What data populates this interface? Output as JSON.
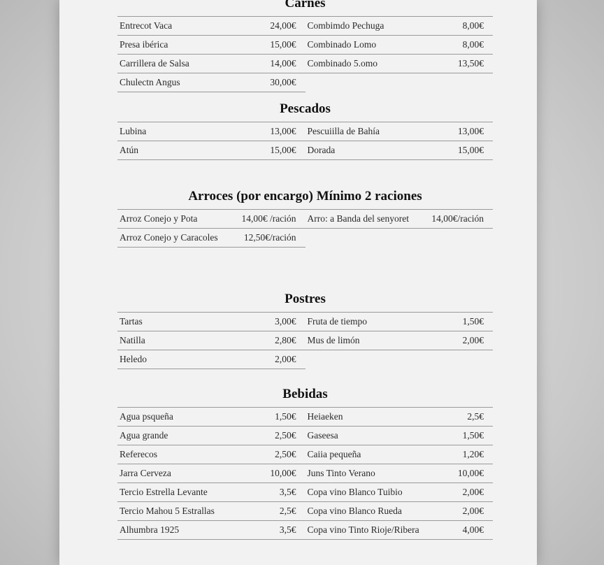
{
  "sections": [
    {
      "id": "carnes",
      "title": "Carnes",
      "rows": [
        [
          {
            "name": "Entrecot Vaca",
            "price": "24,00€"
          },
          {
            "name": "Combimdo Pechuga",
            "price": "8,00€"
          }
        ],
        [
          {
            "name": "Presa ibérica",
            "price": "15,00€"
          },
          {
            "name": "Combinado Lomo",
            "price": "8,00€"
          }
        ],
        [
          {
            "name": "Carrillera de Salsa",
            "price": "14,00€"
          },
          {
            "name": "Combinado 5.omo",
            "price": "13,50€"
          }
        ],
        [
          {
            "name": "Chulectn Angus",
            "price": "30,00€"
          },
          null
        ]
      ]
    },
    {
      "id": "pescados",
      "title": "Pescados",
      "rows": [
        [
          {
            "name": "Lubina",
            "price": "13,00€"
          },
          {
            "name": "Pescuiilla de Bahía",
            "price": "13,00€"
          }
        ],
        [
          {
            "name": "Atún",
            "price": "15,00€"
          },
          {
            "name": "Dorada",
            "price": "15,00€"
          }
        ]
      ]
    },
    {
      "id": "arroces",
      "title": "Arroces (por encargo) Mínimo 2 raciones",
      "rows": [
        [
          {
            "name": "Arroz Conejo y Pota",
            "price": "14,00€ /ración"
          },
          {
            "name": "Arro: a Banda del senyoret",
            "price": "14,00€/ración"
          }
        ],
        [
          {
            "name": "Arroz Conejo y Caracoles",
            "price": "12,50€/ración"
          },
          null
        ]
      ]
    },
    {
      "id": "postres",
      "title": "Postres",
      "rows": [
        [
          {
            "name": "Tartas",
            "price": "3,00€"
          },
          {
            "name": "Fruta de tiempo",
            "price": "1,50€"
          }
        ],
        [
          {
            "name": "Natilla",
            "price": "2,80€"
          },
          {
            "name": "Mus de limón",
            "price": "2,00€"
          }
        ],
        [
          {
            "name": "Heledo",
            "price": "2,00€"
          },
          null
        ]
      ]
    },
    {
      "id": "bebidas",
      "title": "Bebidas",
      "rows": [
        [
          {
            "name": "Agua psqueña",
            "price": "1,50€"
          },
          {
            "name": "Heiaeken",
            "price": "2,5€"
          }
        ],
        [
          {
            "name": "Agua grande",
            "price": "2,50€"
          },
          {
            "name": "Gaseesa",
            "price": "1,50€"
          }
        ],
        [
          {
            "name": "Referecos",
            "price": "2,50€"
          },
          {
            "name": "Caiia pequeña",
            "price": "1,20€"
          }
        ],
        [
          {
            "name": "Jarra Cerveza",
            "price": "10,00€"
          },
          {
            "name": "Juns Tinto Verano",
            "price": "10,00€"
          }
        ],
        [
          {
            "name": "Tercio Estrella Levante",
            "price": "3,5€"
          },
          {
            "name": "Copa vino Blanco Tuibio",
            "price": "2,00€"
          }
        ],
        [
          {
            "name": "Tercio Mahou 5 Estrallas",
            "price": "2,5€"
          },
          {
            "name": "Copa vino Blanco Rueda",
            "price": "2,00€"
          }
        ],
        [
          {
            "name": "Alhumbra 1925",
            "price": "3,5€"
          },
          {
            "name": "Copa vino Tinto Rioje/Ribera",
            "price": "4,00€"
          }
        ]
      ]
    }
  ]
}
